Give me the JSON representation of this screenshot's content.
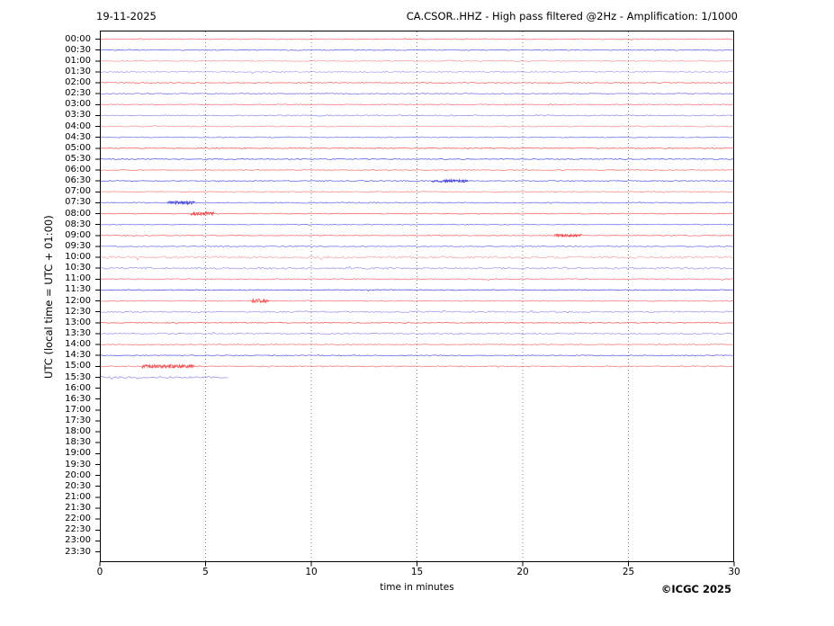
{
  "header": {
    "date": "19-11-2025",
    "title": "CA.CSOR..HHZ - High pass filtered @2Hz - Amplification: 1/1000"
  },
  "axes": {
    "ylabel": "UTC (local time = UTC + 01:00)",
    "xlabel": "time in minutes",
    "x_ticks": [
      0,
      5,
      10,
      15,
      20,
      25,
      30
    ],
    "x_range": [
      0,
      30
    ],
    "grid_minutes": [
      5,
      10,
      15,
      20,
      25
    ],
    "grid_style": "dotted"
  },
  "footer": {
    "copyright": "©ICGC 2025"
  },
  "colors": {
    "red": "#f04848",
    "blue": "#4444dd",
    "grid": "#808080",
    "axis": "#000000",
    "background": "#ffffff"
  },
  "chart_data": {
    "type": "line",
    "subtype": "helicorder-drum-plot",
    "station": "CA.CSOR..HHZ",
    "date": "19-11-2025",
    "filter": "High pass filtered @2Hz",
    "amplification": "1/1000",
    "minutes_per_row": 30,
    "rows": [
      {
        "time": "00:00",
        "color": "red",
        "alpha": 0.75,
        "noise": 0.5,
        "end": 30
      },
      {
        "time": "00:30",
        "color": "blue",
        "alpha": 0.8,
        "noise": 0.5,
        "end": 30
      },
      {
        "time": "01:00",
        "color": "red",
        "alpha": 0.5,
        "noise": 0.6,
        "end": 30
      },
      {
        "time": "01:30",
        "color": "blue",
        "alpha": 0.45,
        "noise": 0.7,
        "end": 30
      },
      {
        "time": "02:00",
        "color": "red",
        "alpha": 0.8,
        "noise": 0.5,
        "end": 30
      },
      {
        "time": "02:30",
        "color": "blue",
        "alpha": 0.7,
        "noise": 0.5,
        "end": 30
      },
      {
        "time": "03:00",
        "color": "red",
        "alpha": 0.7,
        "noise": 0.5,
        "end": 30
      },
      {
        "time": "03:30",
        "color": "blue",
        "alpha": 0.55,
        "noise": 0.6,
        "end": 30
      },
      {
        "time": "04:00",
        "color": "red",
        "alpha": 0.55,
        "noise": 0.6,
        "end": 30
      },
      {
        "time": "04:30",
        "color": "blue",
        "alpha": 0.7,
        "noise": 0.5,
        "end": 30
      },
      {
        "time": "05:00",
        "color": "red",
        "alpha": 0.85,
        "noise": 0.5,
        "end": 30
      },
      {
        "time": "05:30",
        "color": "blue",
        "alpha": 0.85,
        "noise": 0.5,
        "end": 30
      },
      {
        "time": "06:00",
        "color": "red",
        "alpha": 0.7,
        "noise": 0.5,
        "end": 30
      },
      {
        "time": "06:30",
        "color": "blue",
        "alpha": 0.8,
        "noise": 0.6,
        "end": 30
      },
      {
        "time": "07:00",
        "color": "red",
        "alpha": 0.6,
        "noise": 0.6,
        "end": 30
      },
      {
        "time": "07:30",
        "color": "blue",
        "alpha": 0.75,
        "noise": 0.6,
        "end": 30
      },
      {
        "time": "08:00",
        "color": "red",
        "alpha": 0.8,
        "noise": 0.5,
        "end": 30
      },
      {
        "time": "08:30",
        "color": "blue",
        "alpha": 0.7,
        "noise": 0.5,
        "end": 30
      },
      {
        "time": "09:00",
        "color": "red",
        "alpha": 0.75,
        "noise": 0.5,
        "end": 30
      },
      {
        "time": "09:30",
        "color": "blue",
        "alpha": 0.7,
        "noise": 0.5,
        "end": 30
      },
      {
        "time": "10:00",
        "color": "red",
        "alpha": 0.45,
        "noise": 1.2,
        "end": 30
      },
      {
        "time": "10:30",
        "color": "blue",
        "alpha": 0.5,
        "noise": 1.0,
        "end": 30
      },
      {
        "time": "11:00",
        "color": "red",
        "alpha": 0.7,
        "noise": 0.6,
        "end": 30
      },
      {
        "time": "11:30",
        "color": "blue",
        "alpha": 0.9,
        "noise": 0.5,
        "end": 30
      },
      {
        "time": "12:00",
        "color": "red",
        "alpha": 0.7,
        "noise": 0.5,
        "end": 30
      },
      {
        "time": "12:30",
        "color": "blue",
        "alpha": 0.5,
        "noise": 0.8,
        "end": 30
      },
      {
        "time": "13:00",
        "color": "red",
        "alpha": 0.85,
        "noise": 0.5,
        "end": 30
      },
      {
        "time": "13:30",
        "color": "blue",
        "alpha": 0.5,
        "noise": 0.7,
        "end": 30
      },
      {
        "time": "14:00",
        "color": "red",
        "alpha": 0.7,
        "noise": 0.5,
        "end": 30
      },
      {
        "time": "14:30",
        "color": "blue",
        "alpha": 0.8,
        "noise": 0.5,
        "end": 30
      },
      {
        "time": "15:00",
        "color": "red",
        "alpha": 0.7,
        "noise": 0.6,
        "end": 30
      },
      {
        "time": "15:30",
        "color": "blue",
        "alpha": 0.55,
        "noise": 1.0,
        "end": 6.1
      },
      {
        "time": "16:00",
        "color": "red",
        "alpha": 0,
        "noise": 0,
        "end": 0
      },
      {
        "time": "16:30",
        "color": "blue",
        "alpha": 0,
        "noise": 0,
        "end": 0
      },
      {
        "time": "17:00",
        "color": "red",
        "alpha": 0,
        "noise": 0,
        "end": 0
      },
      {
        "time": "17:30",
        "color": "blue",
        "alpha": 0,
        "noise": 0,
        "end": 0
      },
      {
        "time": "18:00",
        "color": "red",
        "alpha": 0,
        "noise": 0,
        "end": 0
      },
      {
        "time": "18:30",
        "color": "blue",
        "alpha": 0,
        "noise": 0,
        "end": 0
      },
      {
        "time": "19:00",
        "color": "red",
        "alpha": 0,
        "noise": 0,
        "end": 0
      },
      {
        "time": "19:30",
        "color": "blue",
        "alpha": 0,
        "noise": 0,
        "end": 0
      },
      {
        "time": "20:00",
        "color": "red",
        "alpha": 0,
        "noise": 0,
        "end": 0
      },
      {
        "time": "20:30",
        "color": "blue",
        "alpha": 0,
        "noise": 0,
        "end": 0
      },
      {
        "time": "21:00",
        "color": "red",
        "alpha": 0,
        "noise": 0,
        "end": 0
      },
      {
        "time": "21:30",
        "color": "blue",
        "alpha": 0,
        "noise": 0,
        "end": 0
      },
      {
        "time": "22:00",
        "color": "red",
        "alpha": 0,
        "noise": 0,
        "end": 0
      },
      {
        "time": "22:30",
        "color": "blue",
        "alpha": 0,
        "noise": 0,
        "end": 0
      },
      {
        "time": "23:00",
        "color": "red",
        "alpha": 0,
        "noise": 0,
        "end": 0
      },
      {
        "time": "23:30",
        "color": "blue",
        "alpha": 0,
        "noise": 0,
        "end": 0
      }
    ],
    "events": [
      {
        "row": "06:30",
        "start": 15.7,
        "end": 17.4,
        "amp": 1.3
      },
      {
        "row": "07:30",
        "start": 3.2,
        "end": 4.5,
        "amp": 1.5
      },
      {
        "row": "08:00",
        "start": 4.3,
        "end": 5.4,
        "amp": 2.0
      },
      {
        "row": "09:00",
        "start": 21.5,
        "end": 22.8,
        "amp": 1.5
      },
      {
        "row": "12:00",
        "start": 7.2,
        "end": 8.0,
        "amp": 2.2
      },
      {
        "row": "15:00",
        "start": 2.0,
        "end": 4.5,
        "amp": 1.8
      }
    ]
  }
}
